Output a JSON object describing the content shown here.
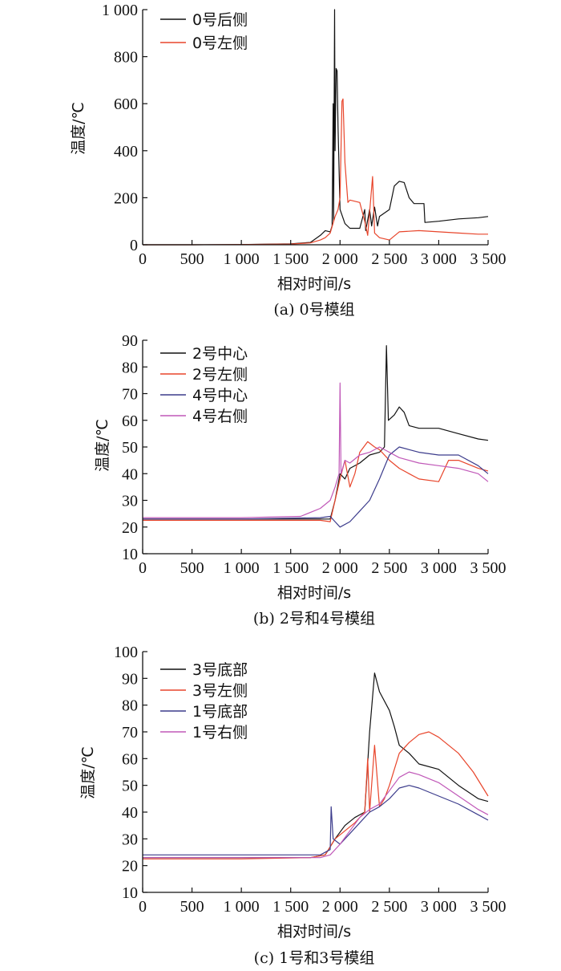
{
  "chart_data": [
    {
      "type": "line",
      "caption": "(a)  0号模组",
      "xlabel": "相对时间/s",
      "ylabel": "温度/℃",
      "xlim": [
        0,
        3500
      ],
      "ylim": [
        0,
        1000
      ],
      "xticks": [
        0,
        500,
        1000,
        1500,
        2000,
        2500,
        3000,
        3500
      ],
      "xtick_labels": [
        "0",
        "500",
        "1 000",
        "1 500",
        "2 000",
        "2 500",
        "3 000",
        "3 500"
      ],
      "yticks": [
        0,
        200,
        400,
        600,
        800,
        1000
      ],
      "ytick_labels": [
        "0",
        "200",
        "400",
        "600",
        "800",
        "1 000"
      ],
      "legend": "top-left",
      "series": [
        {
          "name": "0号后侧",
          "color": "#111111",
          "points": [
            [
              0,
              0
            ],
            [
              500,
              0
            ],
            [
              1000,
              1
            ],
            [
              1500,
              4
            ],
            [
              1700,
              10
            ],
            [
              1800,
              40
            ],
            [
              1850,
              60
            ],
            [
              1900,
              55
            ],
            [
              1920,
              80
            ],
            [
              1930,
              600
            ],
            [
              1935,
              100
            ],
            [
              1945,
              1000
            ],
            [
              1950,
              400
            ],
            [
              1960,
              750
            ],
            [
              1970,
              740
            ],
            [
              1980,
              500
            ],
            [
              2000,
              150
            ],
            [
              2050,
              90
            ],
            [
              2100,
              70
            ],
            [
              2200,
              70
            ],
            [
              2250,
              150
            ],
            [
              2260,
              60
            ],
            [
              2300,
              150
            ],
            [
              2320,
              80
            ],
            [
              2350,
              160
            ],
            [
              2380,
              80
            ],
            [
              2400,
              120
            ],
            [
              2500,
              150
            ],
            [
              2550,
              250
            ],
            [
              2600,
              270
            ],
            [
              2650,
              265
            ],
            [
              2700,
              200
            ],
            [
              2750,
              175
            ],
            [
              2800,
              175
            ],
            [
              2850,
              175
            ],
            [
              2860,
              95
            ],
            [
              3000,
              100
            ],
            [
              3200,
              110
            ],
            [
              3400,
              115
            ],
            [
              3500,
              120
            ]
          ]
        },
        {
          "name": "0号左侧",
          "color": "#e8452b",
          "points": [
            [
              0,
              0
            ],
            [
              500,
              0
            ],
            [
              1000,
              1
            ],
            [
              1500,
              3
            ],
            [
              1700,
              8
            ],
            [
              1800,
              20
            ],
            [
              1850,
              30
            ],
            [
              1900,
              50
            ],
            [
              1950,
              120
            ],
            [
              1980,
              150
            ],
            [
              2000,
              200
            ],
            [
              2020,
              610
            ],
            [
              2030,
              620
            ],
            [
              2050,
              350
            ],
            [
              2080,
              180
            ],
            [
              2100,
              190
            ],
            [
              2200,
              180
            ],
            [
              2250,
              100
            ],
            [
              2280,
              40
            ],
            [
              2330,
              290
            ],
            [
              2350,
              50
            ],
            [
              2400,
              30
            ],
            [
              2500,
              20
            ],
            [
              2600,
              55
            ],
            [
              2800,
              60
            ],
            [
              3000,
              55
            ],
            [
              3200,
              50
            ],
            [
              3400,
              45
            ],
            [
              3500,
              45
            ]
          ]
        }
      ]
    },
    {
      "type": "line",
      "caption": "(b)  2号和4号模组",
      "xlabel": "相对时间/s",
      "ylabel": "温度/℃",
      "xlim": [
        0,
        3500
      ],
      "ylim": [
        10,
        90
      ],
      "xticks": [
        0,
        500,
        1000,
        1500,
        2000,
        2500,
        3000,
        3500
      ],
      "xtick_labels": [
        "0",
        "500",
        "1 000",
        "1 500",
        "2 000",
        "2 500",
        "3 000",
        "3 500"
      ],
      "yticks": [
        10,
        20,
        30,
        40,
        50,
        60,
        70,
        80,
        90
      ],
      "ytick_labels": [
        "10",
        "20",
        "30",
        "40",
        "50",
        "60",
        "70",
        "80",
        "90"
      ],
      "legend": "top-left",
      "series": [
        {
          "name": "2号中心",
          "color": "#111111",
          "points": [
            [
              0,
              23
            ],
            [
              1000,
              23
            ],
            [
              1800,
              23
            ],
            [
              1900,
              23
            ],
            [
              1950,
              30
            ],
            [
              2000,
              40
            ],
            [
              2050,
              38
            ],
            [
              2100,
              42
            ],
            [
              2200,
              44
            ],
            [
              2300,
              47
            ],
            [
              2400,
              48
            ],
            [
              2450,
              50
            ],
            [
              2470,
              88
            ],
            [
              2490,
              60
            ],
            [
              2550,
              62
            ],
            [
              2600,
              65
            ],
            [
              2650,
              63
            ],
            [
              2700,
              58
            ],
            [
              2800,
              57
            ],
            [
              3000,
              57
            ],
            [
              3200,
              55
            ],
            [
              3400,
              53
            ],
            [
              3500,
              52.5
            ]
          ]
        },
        {
          "name": "2号左侧",
          "color": "#e8452b",
          "points": [
            [
              0,
              22.5
            ],
            [
              1000,
              22.5
            ],
            [
              1800,
              22.5
            ],
            [
              1900,
              22
            ],
            [
              1950,
              30
            ],
            [
              2000,
              38
            ],
            [
              2050,
              45
            ],
            [
              2100,
              35
            ],
            [
              2150,
              40
            ],
            [
              2200,
              48
            ],
            [
              2280,
              52
            ],
            [
              2350,
              50
            ],
            [
              2400,
              49
            ],
            [
              2500,
              45
            ],
            [
              2600,
              42
            ],
            [
              2700,
              40
            ],
            [
              2800,
              38
            ],
            [
              3000,
              37
            ],
            [
              3100,
              45
            ],
            [
              3200,
              45
            ],
            [
              3400,
              42
            ],
            [
              3500,
              41
            ]
          ]
        },
        {
          "name": "4号中心",
          "color": "#3c3c8c",
          "points": [
            [
              0,
              23
            ],
            [
              1000,
              23
            ],
            [
              1800,
              23.5
            ],
            [
              1900,
              24
            ],
            [
              1950,
              22
            ],
            [
              2000,
              20
            ],
            [
              2100,
              22
            ],
            [
              2200,
              26
            ],
            [
              2300,
              30
            ],
            [
              2400,
              38
            ],
            [
              2500,
              47
            ],
            [
              2600,
              50
            ],
            [
              2700,
              49
            ],
            [
              2800,
              48
            ],
            [
              3000,
              47
            ],
            [
              3200,
              47
            ],
            [
              3400,
              43
            ],
            [
              3500,
              40
            ]
          ]
        },
        {
          "name": "4号右侧",
          "color": "#c058b8",
          "points": [
            [
              0,
              23.5
            ],
            [
              1000,
              23.5
            ],
            [
              1600,
              24
            ],
            [
              1800,
              27
            ],
            [
              1900,
              30
            ],
            [
              1950,
              35
            ],
            [
              1990,
              40
            ],
            [
              2000,
              74
            ],
            [
              2010,
              40
            ],
            [
              2050,
              45
            ],
            [
              2100,
              44
            ],
            [
              2200,
              47
            ],
            [
              2300,
              48
            ],
            [
              2400,
              50
            ],
            [
              2500,
              48
            ],
            [
              2600,
              46
            ],
            [
              2800,
              44
            ],
            [
              3000,
              43
            ],
            [
              3200,
              42
            ],
            [
              3400,
              40
            ],
            [
              3500,
              37
            ]
          ]
        }
      ]
    },
    {
      "type": "line",
      "caption": "(c)  1号和3号模组",
      "xlabel": "相对时间/s",
      "ylabel": "温度/℃",
      "xlim": [
        0,
        3500
      ],
      "ylim": [
        10,
        100
      ],
      "xticks": [
        0,
        500,
        1000,
        1500,
        2000,
        2500,
        3000,
        3500
      ],
      "xtick_labels": [
        "0",
        "500",
        "1 000",
        "1 500",
        "2 000",
        "2 500",
        "3 000",
        "3 500"
      ],
      "yticks": [
        10,
        20,
        30,
        40,
        50,
        60,
        70,
        80,
        90,
        100
      ],
      "ytick_labels": [
        "10",
        "20",
        "30",
        "40",
        "50",
        "60",
        "70",
        "80",
        "90",
        "100"
      ],
      "legend": "top-left",
      "series": [
        {
          "name": "3号底部",
          "color": "#111111",
          "points": [
            [
              0,
              23
            ],
            [
              1000,
              23
            ],
            [
              1700,
              23
            ],
            [
              1850,
              24
            ],
            [
              1950,
              30
            ],
            [
              2050,
              35
            ],
            [
              2150,
              38
            ],
            [
              2250,
              40
            ],
            [
              2300,
              70
            ],
            [
              2350,
              92
            ],
            [
              2400,
              85
            ],
            [
              2500,
              78
            ],
            [
              2550,
              72
            ],
            [
              2600,
              65
            ],
            [
              2700,
              62
            ],
            [
              2800,
              58
            ],
            [
              3000,
              56
            ],
            [
              3200,
              50
            ],
            [
              3400,
              45
            ],
            [
              3500,
              44
            ]
          ]
        },
        {
          "name": "3号左侧",
          "color": "#e8452b",
          "points": [
            [
              0,
              22.5
            ],
            [
              1000,
              22.5
            ],
            [
              1700,
              23
            ],
            [
              1850,
              24
            ],
            [
              1950,
              30
            ],
            [
              2050,
              33
            ],
            [
              2150,
              36
            ],
            [
              2250,
              40
            ],
            [
              2280,
              60
            ],
            [
              2300,
              40
            ],
            [
              2350,
              65
            ],
            [
              2400,
              42
            ],
            [
              2450,
              45
            ],
            [
              2500,
              50
            ],
            [
              2600,
              62
            ],
            [
              2700,
              66
            ],
            [
              2800,
              69
            ],
            [
              2900,
              70
            ],
            [
              3000,
              68
            ],
            [
              3200,
              62
            ],
            [
              3350,
              55
            ],
            [
              3500,
              46
            ]
          ]
        },
        {
          "name": "1号底部",
          "color": "#3c3c8c",
          "points": [
            [
              0,
              24
            ],
            [
              1000,
              24
            ],
            [
              1800,
              24
            ],
            [
              1900,
              26
            ],
            [
              1910,
              42
            ],
            [
              1930,
              30
            ],
            [
              2000,
              28
            ],
            [
              2100,
              32
            ],
            [
              2200,
              36
            ],
            [
              2300,
              40
            ],
            [
              2400,
              42
            ],
            [
              2500,
              45
            ],
            [
              2600,
              49
            ],
            [
              2700,
              50
            ],
            [
              2800,
              49
            ],
            [
              3000,
              46
            ],
            [
              3200,
              43
            ],
            [
              3400,
              39
            ],
            [
              3500,
              37
            ]
          ]
        },
        {
          "name": "1号右侧",
          "color": "#c058b8",
          "points": [
            [
              0,
              23
            ],
            [
              1000,
              23
            ],
            [
              1800,
              23
            ],
            [
              1900,
              24
            ],
            [
              2000,
              28
            ],
            [
              2100,
              33
            ],
            [
              2200,
              38
            ],
            [
              2300,
              41
            ],
            [
              2400,
              43
            ],
            [
              2500,
              48
            ],
            [
              2600,
              53
            ],
            [
              2700,
              55
            ],
            [
              2800,
              54
            ],
            [
              3000,
              51
            ],
            [
              3200,
              46
            ],
            [
              3400,
              41
            ],
            [
              3500,
              39
            ]
          ]
        }
      ]
    }
  ]
}
